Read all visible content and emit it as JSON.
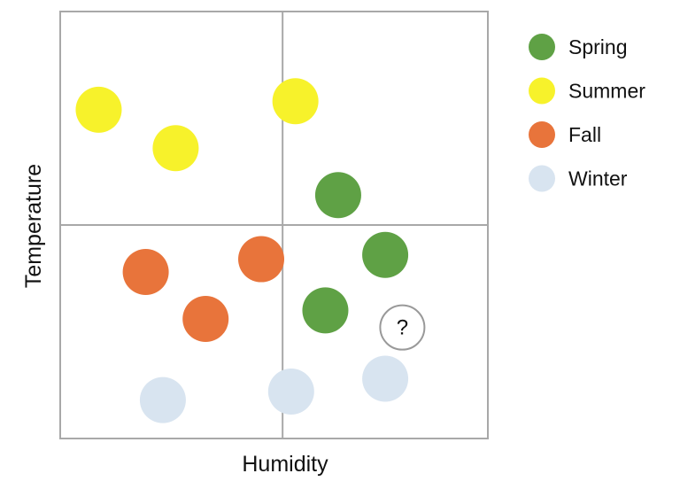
{
  "chart_data": {
    "type": "scatter",
    "xlabel": "Humidity",
    "ylabel": "Temperature",
    "xlim": [
      0,
      10
    ],
    "ylim": [
      0,
      10
    ],
    "quadrant_divider": {
      "x": 5.2,
      "y": 5
    },
    "grid": false,
    "legend_position": "right",
    "series": [
      {
        "name": "Spring",
        "color": "#5fa145",
        "points": [
          {
            "x": 6.5,
            "y": 5.7
          },
          {
            "x": 7.6,
            "y": 4.3
          },
          {
            "x": 6.2,
            "y": 3.0
          }
        ]
      },
      {
        "name": "Summer",
        "color": "#f7f22b",
        "points": [
          {
            "x": 0.9,
            "y": 7.7
          },
          {
            "x": 2.7,
            "y": 6.8
          },
          {
            "x": 5.5,
            "y": 7.9
          }
        ]
      },
      {
        "name": "Fall",
        "color": "#e8743b",
        "points": [
          {
            "x": 2.0,
            "y": 3.9
          },
          {
            "x": 4.7,
            "y": 4.2
          },
          {
            "x": 3.4,
            "y": 2.8
          }
        ]
      },
      {
        "name": "Winter",
        "color": "#d8e4f0",
        "points": [
          {
            "x": 2.4,
            "y": 0.9
          },
          {
            "x": 5.4,
            "y": 1.1
          },
          {
            "x": 7.6,
            "y": 1.4
          }
        ]
      }
    ],
    "unknown_point": {
      "x": 8.0,
      "y": 2.6,
      "label": "?"
    }
  }
}
